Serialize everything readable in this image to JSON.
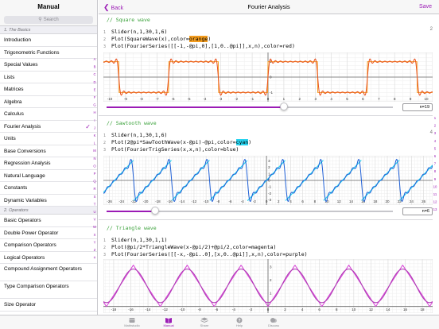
{
  "sidebar": {
    "title": "Manual",
    "search_placeholder": "Search",
    "sections": [
      {
        "title": "1. The Basics"
      },
      {
        "title": "2. Operators"
      }
    ],
    "basics_items": [
      "Introduction",
      "Trigonometric Functions",
      "Special Values",
      "Lists",
      "Matrices",
      "Algebra",
      "Calculus",
      "Fourier Analysis",
      "Units",
      "Base Conversions",
      "Regression Analysis",
      "Natural Language",
      "Constants",
      "Dynamic Variables"
    ],
    "operator_items": [
      "Basic Operators",
      "Double Power Operator",
      "Comparison Operators",
      "Logical Operators",
      "Compound Assignment Operators",
      "Type Comparison Operators",
      "Size Operator"
    ],
    "selected": "Fourier Analysis"
  },
  "nav": {
    "back_label": "Back",
    "title": "Fourier Analysis",
    "save_label": "Save"
  },
  "index_letters": [
    "A",
    "B",
    "C",
    "D",
    "E",
    "F",
    "G",
    "H",
    "I",
    "J",
    "K",
    "L",
    "M",
    "N",
    "O",
    "P",
    "Q",
    "R",
    "S",
    "T",
    "U",
    "V",
    "W",
    "X",
    "Y",
    "Z",
    "#"
  ],
  "right_numbers": [
    "1",
    "2",
    "3",
    "4",
    "5",
    "6",
    "7",
    "8",
    "9",
    "10",
    "11",
    "12",
    "13"
  ],
  "sections": [
    {
      "comment": "// Square wave",
      "number": "2",
      "lines": [
        {
          "n": "1",
          "parts": [
            {
              "t": "Slider(n,1,30,1,6)"
            }
          ]
        },
        {
          "n": "2",
          "parts": [
            {
              "t": "Plot(SquareWave(x),color="
            },
            {
              "t": "orange",
              "hl": "orange"
            },
            {
              "t": ")"
            }
          ]
        },
        {
          "n": "3",
          "parts": [
            {
              "t": "Plot(FourierSeries([[-1,-@pi,0],[1,0..@pi]],x,n),color=red)"
            }
          ]
        }
      ],
      "graph_color": "#e8501e",
      "wave": "square",
      "x_ticks": [
        "-10",
        "-9",
        "-8",
        "-7",
        "-6",
        "-5",
        "-4",
        "-3",
        "-2",
        "-1",
        "0",
        "1",
        "2",
        "3",
        "4",
        "5",
        "6",
        "7",
        "8",
        "9",
        "10"
      ],
      "y_ticks": [
        "1",
        "0",
        "-1"
      ],
      "slider_value": "n=19",
      "slider_fraction": 0.62
    },
    {
      "comment": "// Sawtooth wave",
      "number": "4",
      "lines": [
        {
          "n": "1",
          "parts": [
            {
              "t": "Slider(n,1,30,1,6)"
            }
          ]
        },
        {
          "n": "2",
          "parts": [
            {
              "t": "Plot(2@pi*SawToothWave(x-@pi)-@pi,color="
            },
            {
              "t": "cyan",
              "hl": "cyan"
            },
            {
              "t": ")"
            }
          ]
        },
        {
          "n": "3",
          "parts": [
            {
              "t": "Plot(FourierTrigSeries(x,x,n),color=blue)"
            }
          ]
        }
      ],
      "graph_color": "#1e5fd6",
      "wave": "sawtooth",
      "x_ticks": [
        "-26",
        "-24",
        "-22",
        "-20",
        "-18",
        "-16",
        "-14",
        "-12",
        "-10",
        "-8",
        "-6",
        "-4",
        "-2",
        "0",
        "2",
        "4",
        "6",
        "8",
        "10",
        "12",
        "14",
        "16",
        "18",
        "20",
        "22",
        "24",
        "26"
      ],
      "y_ticks": [
        "3",
        "2",
        "1",
        "0",
        "-1",
        "-2",
        "-3"
      ],
      "slider_value": "n=6",
      "slider_fraction": 0.17
    },
    {
      "comment": "// Triangle wave",
      "number": "",
      "lines": [
        {
          "n": "1",
          "parts": [
            {
              "t": "Slider(n,1,30,1,1)"
            }
          ]
        },
        {
          "n": "2",
          "parts": [
            {
              "t": "Plot(@pi/2*TriangleWave(x-@pi/2)+@pi/2,color=magenta)"
            }
          ]
        },
        {
          "n": "3",
          "parts": [
            {
              "t": "Plot(FourierSeries([[-x,-@pi..0],[x,0..@pi]],x,n),color=purple)"
            }
          ]
        }
      ],
      "graph_color": "#b03fb5",
      "wave": "triangle",
      "x_ticks": [
        "-18",
        "-16",
        "-14",
        "-12",
        "-10",
        "-8",
        "-6",
        "-4",
        "-2",
        "0",
        "2",
        "4",
        "6",
        "8",
        "10",
        "12",
        "14",
        "16",
        "18"
      ],
      "y_ticks": [
        "3",
        "2",
        "1"
      ]
    }
  ],
  "tabbar": {
    "tabs": [
      {
        "label": "Mathstudio",
        "icon": "mathstudio-icon"
      },
      {
        "label": "Manual",
        "icon": "book-icon"
      },
      {
        "label": "Share",
        "icon": "stack-icon"
      },
      {
        "label": "Help",
        "icon": "help-icon"
      },
      {
        "label": "Discuss",
        "icon": "discuss-icon"
      }
    ],
    "active": "Manual"
  },
  "colors": {
    "accent": "#9b1bb5",
    "square_plot": "#e8501e",
    "sawtooth_plot": "#1e5fd6",
    "triangle_plot": "#b03fb5"
  }
}
